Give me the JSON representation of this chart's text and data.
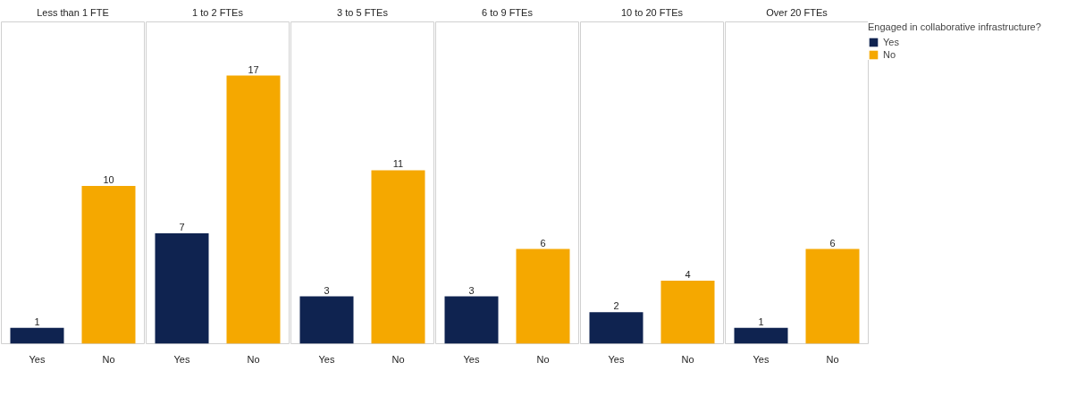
{
  "chart_data": [
    {
      "type": "bar",
      "title": "Less than 1 FTE",
      "categories": [
        null
      ],
      "series": [
        {
          "name": "Yes",
          "color": "#0f2350",
          "values": [
            1
          ]
        },
        {
          "name": "No",
          "color": "#f5a800",
          "values": [
            10
          ]
        }
      ],
      "data_labels": true,
      "tick_labels": "x",
      "grid": false,
      "legend": false
    },
    {
      "type": "bar",
      "title": "1 to 2 FTEs",
      "categories": [
        null
      ],
      "series": [
        {
          "name": "Yes",
          "color": "#0f2350",
          "values": [
            7
          ]
        },
        {
          "name": "No",
          "color": "#f5a800",
          "values": [
            17
          ]
        }
      ],
      "data_labels": true,
      "tick_labels": "x",
      "grid": false,
      "legend": false
    },
    {
      "type": "bar",
      "title": "3 to 5 FTEs",
      "categories": [
        null
      ],
      "series": [
        {
          "name": "Yes",
          "color": "#0f2350",
          "values": [
            3
          ]
        },
        {
          "name": "No",
          "color": "#f5a800",
          "values": [
            11
          ]
        }
      ],
      "data_labels": true,
      "tick_labels": "x",
      "grid": false,
      "legend": false
    },
    {
      "type": "bar",
      "title": "6 to 9 FTEs",
      "categories": [
        null
      ],
      "series": [
        {
          "name": "Yes",
          "color": "#0f2350",
          "values": [
            3
          ]
        },
        {
          "name": "No",
          "color": "#f5a800",
          "values": [
            6
          ]
        }
      ],
      "data_labels": true,
      "tick_labels": "x",
      "grid": false,
      "legend": false
    },
    {
      "type": "bar",
      "title": "10 to 20 FTEs",
      "categories": [
        null
      ],
      "series": [
        {
          "name": "Yes",
          "color": "#0f2350",
          "values": [
            2
          ]
        },
        {
          "name": "No",
          "color": "#f5a800",
          "values": [
            4
          ]
        }
      ],
      "data_labels": true,
      "tick_labels": "x",
      "grid": false,
      "legend": false
    },
    {
      "type": "bar",
      "title": "Over 20 FTEs",
      "categories": [
        null
      ],
      "series": [
        {
          "name": "Yes",
          "color": "#0f2350",
          "values": [
            1
          ]
        },
        {
          "name": "No",
          "color": "#f5a800",
          "values": [
            6
          ]
        }
      ],
      "data_labels": true,
      "tick_labels": "x",
      "grid": false,
      "legend": "right",
      "legend_title": "Engaged in collaborative infrastructure?"
    }
  ]
}
